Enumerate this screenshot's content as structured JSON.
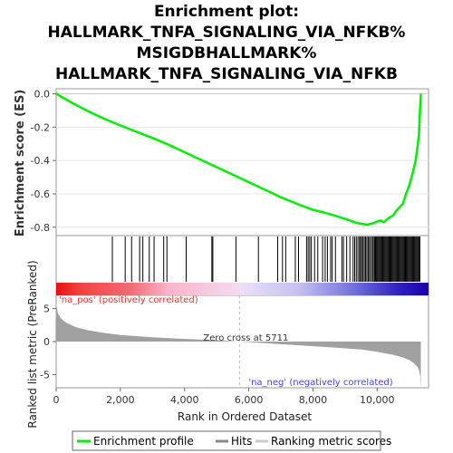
{
  "chart_data": {
    "type": "line",
    "title_lines": [
      "Enrichment plot:",
      "HALLMARK_TNFA_SIGNALING_VIA_NFKB%",
      "MSIGDBHALLMARK%",
      "HALLMARK_TNFA_SIGNALING_VIA_NFKB"
    ],
    "xlabel": "Rank in Ordered Dataset",
    "xlim": [
      0,
      11600
    ],
    "x_ticks": [
      0,
      2000,
      4000,
      6000,
      8000,
      10000
    ],
    "x_tick_labels": [
      "0",
      "2,000",
      "4,000",
      "6,000",
      "8,000",
      "10,000"
    ],
    "top_panel": {
      "ylabel": "Enrichment score (ES)",
      "ylim": [
        -0.85,
        0.03
      ],
      "y_ticks": [
        0.0,
        -0.2,
        -0.4,
        -0.6,
        -0.8
      ],
      "y_tick_labels": [
        "0.0",
        "-0.2",
        "-0.4",
        "-0.6",
        "-0.8"
      ],
      "series_name": "Enrichment profile",
      "es_curve": {
        "x": [
          0,
          500,
          1000,
          1500,
          2000,
          2500,
          3000,
          3500,
          4000,
          4500,
          5000,
          5500,
          6000,
          6500,
          7000,
          7500,
          8000,
          8500,
          9000,
          9300,
          9500,
          9700,
          9900,
          10000,
          10100,
          10200,
          10300,
          10400,
          10500,
          10600,
          10700,
          10800,
          10900,
          11000,
          11100,
          11200,
          11300,
          11330,
          11360
        ],
        "y": [
          0.0,
          -0.055,
          -0.105,
          -0.15,
          -0.19,
          -0.228,
          -0.265,
          -0.305,
          -0.35,
          -0.395,
          -0.44,
          -0.485,
          -0.53,
          -0.575,
          -0.62,
          -0.66,
          -0.695,
          -0.72,
          -0.75,
          -0.77,
          -0.78,
          -0.785,
          -0.775,
          -0.765,
          -0.76,
          -0.77,
          -0.755,
          -0.74,
          -0.73,
          -0.7,
          -0.68,
          -0.66,
          -0.6,
          -0.55,
          -0.48,
          -0.4,
          -0.25,
          -0.12,
          0.0
        ]
      }
    },
    "hits": [
      1750,
      2150,
      2350,
      2600,
      2700,
      2900,
      3050,
      3350,
      3450,
      4050,
      4850,
      4880,
      5600,
      6300,
      6900,
      7050,
      7150,
      7450,
      7550,
      7800,
      7850,
      7900,
      7950,
      8050,
      8150,
      8300,
      8380,
      8450,
      8550,
      8600,
      8700,
      8900,
      8950,
      9050,
      9150,
      9250,
      9300,
      9350,
      9400,
      9450,
      9480,
      9520,
      9560,
      9600,
      9640,
      9680,
      9720,
      9760,
      9800,
      9850,
      9880,
      9920,
      9950,
      9980,
      10010,
      10040,
      10070,
      10100,
      10130,
      10160,
      10190,
      10220,
      10250,
      10280,
      10310,
      10340,
      10370,
      10400,
      10430,
      10460,
      10490,
      10520,
      10550,
      10580,
      10610,
      10640,
      10670,
      10700,
      10730,
      10760,
      10790,
      10820,
      10850,
      10880,
      10910,
      10940,
      10970,
      11000,
      11030,
      11060,
      11090,
      11120,
      11150,
      11180,
      11210,
      11240,
      11270,
      11300,
      11330
    ],
    "hits_name": "Hits",
    "bottom_panel": {
      "ylabel": "Ranked list metric (PreRanked)",
      "ylim": [
        -7,
        7
      ],
      "y_ticks": [
        5,
        0,
        -5
      ],
      "y_tick_labels": [
        "5",
        "0",
        "-5"
      ],
      "series_name": "Ranking metric scores",
      "metric_curve": {
        "x": [
          0,
          50,
          150,
          300,
          600,
          1000,
          1500,
          2000,
          3000,
          4000,
          5000,
          5711,
          6500,
          7500,
          8500,
          9500,
          10000,
          10500,
          10800,
          11000,
          11150,
          11250,
          11300,
          11340,
          11360
        ],
        "y": [
          5.8,
          4.3,
          3.5,
          2.9,
          2.2,
          1.7,
          1.3,
          1.0,
          0.65,
          0.4,
          0.2,
          0.0,
          -0.25,
          -0.55,
          -0.85,
          -1.2,
          -1.55,
          -2.0,
          -2.4,
          -2.8,
          -3.3,
          -3.8,
          -4.3,
          -5.2,
          -7.0
        ]
      },
      "zero_cross_label": "Zero cross at 5711",
      "zero_cross_x": 5711,
      "pos_label": "'na_pos' (positively correlated)",
      "neg_label": "'na_neg' (negatively correlated)"
    },
    "legend": [
      "Enrichment profile",
      "Hits",
      "Ranking metric scores"
    ],
    "legend_position": "bottom",
    "colors": {
      "es_line": "#00ee00",
      "hit": "#000000",
      "metric_fill": "#a0a0a0",
      "pos_label": "#ee3333",
      "neg_label": "#4444dd",
      "zero_line": "#bbbbbb"
    }
  }
}
